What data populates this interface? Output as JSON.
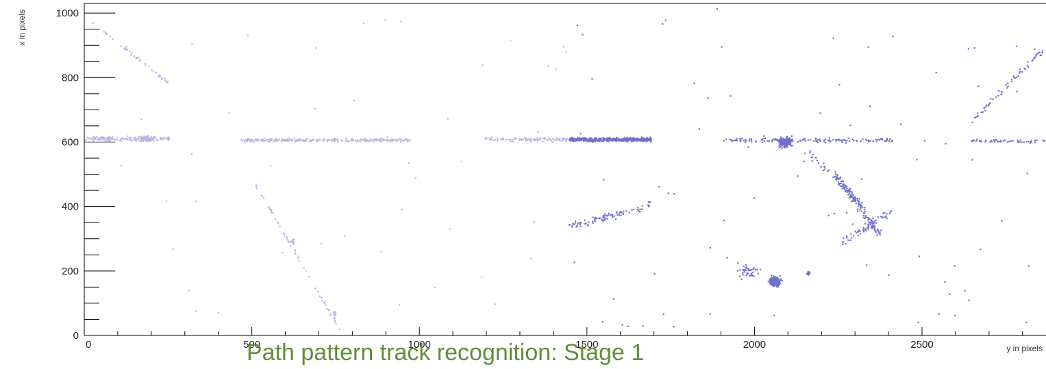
{
  "caption": "Path pattern track recognition: Stage 1",
  "chart_data": {
    "type": "scatter",
    "title": "",
    "xlabel": "y in pixels",
    "ylabel": "x in pixels",
    "xlim": [
      0,
      2870
    ],
    "ylim": [
      0,
      1030
    ],
    "x_ticks": [
      0,
      500,
      1000,
      1500,
      2000,
      2500
    ],
    "y_ticks": [
      0,
      200,
      400,
      600,
      800,
      1000
    ],
    "grid": false,
    "legend": "none",
    "series": [
      {
        "color": "#b8b8e4",
        "clusters": [
          {
            "shape": "band",
            "x": [
              0,
              255
            ],
            "y": 612,
            "spread": 10,
            "n": 170
          },
          {
            "shape": "blob",
            "x": 185,
            "y": 612,
            "rx": 30,
            "ry": 12,
            "n": 60
          },
          {
            "shape": "band",
            "x": 470,
            "y": 608,
            "spread": 7,
            "n": 3
          },
          {
            "shape": "band",
            "x": [
              475,
              970
            ],
            "y": 608,
            "spread": 8,
            "n": 260
          },
          {
            "shape": "band",
            "x": [
              1190,
              1440
            ],
            "y": 610,
            "spread": 9,
            "n": 110
          },
          {
            "shape": "line",
            "x": [
              20,
              255
            ],
            "y": [
              975,
              780
            ],
            "spread": 8,
            "n": 45
          },
          {
            "shape": "line",
            "x": [
              510,
              760
            ],
            "y": [
              470,
              20
            ],
            "spread": 8,
            "n": 60
          },
          {
            "shape": "blob",
            "x": 620,
            "y": 295,
            "rx": 8,
            "ry": 12,
            "n": 14
          },
          {
            "shape": "blob",
            "x": 745,
            "y": 65,
            "rx": 6,
            "ry": 18,
            "n": 16
          },
          {
            "shape": "sparse",
            "x": [
              100,
              1440
            ],
            "y": [
              20,
              1010
            ],
            "n": 45
          }
        ]
      },
      {
        "color": "#6e72c9",
        "clusters": [
          {
            "shape": "band",
            "x": [
              1445,
              1690
            ],
            "y": 610,
            "spread": 9,
            "n": 420
          },
          {
            "shape": "band",
            "x": [
              1905,
              2410
            ],
            "y": 608,
            "spread": 9,
            "n": 140
          },
          {
            "shape": "blob",
            "x": 2090,
            "y": 602,
            "rx": 25,
            "ry": 22,
            "n": 180
          },
          {
            "shape": "band",
            "x": [
              2640,
              2870
            ],
            "y": 605,
            "spread": 7,
            "n": 55
          },
          {
            "shape": "line",
            "x": [
              1445,
              1690
            ],
            "y": [
              340,
              405
            ],
            "spread": 18,
            "n": 90
          },
          {
            "shape": "line",
            "x": [
              2150,
              2330
            ],
            "y": [
              580,
              400
            ],
            "spread": 15,
            "n": 40
          },
          {
            "shape": "line",
            "x": [
              2240,
              2370
            ],
            "y": [
              500,
              320
            ],
            "spread": 22,
            "n": 150
          },
          {
            "shape": "line",
            "x": [
              2260,
              2410
            ],
            "y": [
              290,
              390
            ],
            "spread": 18,
            "n": 60
          },
          {
            "shape": "blob",
            "x": 2060,
            "y": 170,
            "rx": 25,
            "ry": 22,
            "n": 160
          },
          {
            "shape": "blob",
            "x": 1980,
            "y": 200,
            "rx": 45,
            "ry": 30,
            "n": 40
          },
          {
            "shape": "blob",
            "x": 2160,
            "y": 195,
            "rx": 8,
            "ry": 10,
            "n": 15
          },
          {
            "shape": "line",
            "x": [
              2640,
              2860
            ],
            "y": [
              660,
              890
            ],
            "spread": 14,
            "n": 60
          },
          {
            "shape": "sparse",
            "x": [
              1445,
              2870
            ],
            "y": [
              20,
              1020
            ],
            "n": 80
          }
        ]
      }
    ]
  }
}
